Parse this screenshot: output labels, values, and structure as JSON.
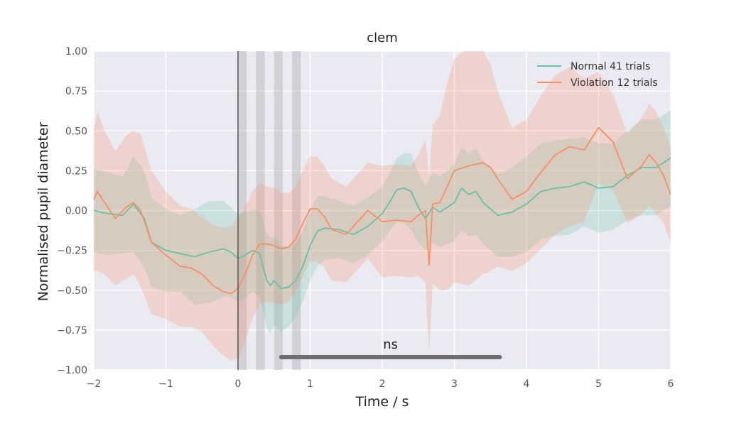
{
  "chart_data": {
    "type": "line",
    "title": "clem",
    "xlabel": "Time / s",
    "ylabel": "Normalised pupil diameter",
    "xlim": [
      -2,
      6
    ],
    "ylim": [
      -1.0,
      1.0
    ],
    "xticks": [
      -2,
      -1,
      0,
      1,
      2,
      3,
      4,
      5,
      6
    ],
    "xtick_labels": [
      "−2",
      "−1",
      "0",
      "1",
      "2",
      "3",
      "4",
      "5",
      "6"
    ],
    "yticks": [
      -1.0,
      -0.75,
      -0.5,
      -0.25,
      0.0,
      0.25,
      0.5,
      0.75,
      1.0
    ],
    "ytick_labels": [
      "−1.00",
      "−0.75",
      "−0.50",
      "−0.25",
      "0.00",
      "0.25",
      "0.50",
      "0.75",
      "1.00"
    ],
    "grid": true,
    "legend_position": "top-right",
    "series": [
      {
        "name": "Normal 41 trials",
        "color": "#66c2a5",
        "x": [
          -2.0,
          -1.8,
          -1.6,
          -1.45,
          -1.3,
          -1.2,
          -1.0,
          -0.8,
          -0.6,
          -0.4,
          -0.2,
          -0.1,
          0.0,
          0.1,
          0.2,
          0.3,
          0.4,
          0.45,
          0.5,
          0.6,
          0.7,
          0.8,
          0.9,
          1.0,
          1.1,
          1.2,
          1.4,
          1.6,
          1.8,
          2.0,
          2.1,
          2.2,
          2.3,
          2.4,
          2.5,
          2.6,
          2.7,
          2.8,
          3.0,
          3.1,
          3.2,
          3.3,
          3.4,
          3.6,
          3.8,
          4.0,
          4.2,
          4.4,
          4.6,
          4.8,
          5.0,
          5.2,
          5.4,
          5.6,
          5.8,
          6.0
        ],
        "y": [
          0.0,
          -0.02,
          -0.03,
          0.04,
          -0.05,
          -0.2,
          -0.25,
          -0.27,
          -0.29,
          -0.26,
          -0.24,
          -0.26,
          -0.3,
          -0.28,
          -0.25,
          -0.27,
          -0.44,
          -0.47,
          -0.44,
          -0.49,
          -0.48,
          -0.44,
          -0.35,
          -0.22,
          -0.13,
          -0.11,
          -0.12,
          -0.15,
          -0.1,
          -0.02,
          0.05,
          0.13,
          0.14,
          0.12,
          0.02,
          -0.05,
          0.02,
          -0.01,
          0.05,
          0.14,
          0.1,
          0.12,
          0.05,
          -0.03,
          -0.01,
          0.04,
          0.12,
          0.14,
          0.15,
          0.18,
          0.14,
          0.15,
          0.22,
          0.27,
          0.27,
          0.33
        ],
        "ci": [
          0.26,
          0.26,
          0.24,
          0.3,
          0.3,
          0.28,
          0.26,
          0.24,
          0.3,
          0.32,
          0.3,
          0.28,
          0.28,
          0.27,
          0.26,
          0.27,
          0.3,
          0.3,
          0.28,
          0.27,
          0.25,
          0.23,
          0.22,
          0.22,
          0.22,
          0.2,
          0.18,
          0.18,
          0.18,
          0.17,
          0.18,
          0.2,
          0.22,
          0.24,
          0.22,
          0.2,
          0.22,
          0.22,
          0.24,
          0.26,
          0.26,
          0.27,
          0.26,
          0.26,
          0.28,
          0.3,
          0.3,
          0.3,
          0.3,
          0.28,
          0.28,
          0.27,
          0.28,
          0.3,
          0.3,
          0.3
        ]
      },
      {
        "name": "Violation 12 trials",
        "color": "#fc8d62",
        "x": [
          -2.0,
          -1.95,
          -1.85,
          -1.7,
          -1.55,
          -1.45,
          -1.35,
          -1.2,
          -1.0,
          -0.8,
          -0.65,
          -0.5,
          -0.35,
          -0.2,
          -0.1,
          0.0,
          0.1,
          0.2,
          0.3,
          0.4,
          0.5,
          0.6,
          0.7,
          0.8,
          0.9,
          1.0,
          1.1,
          1.2,
          1.3,
          1.5,
          1.6,
          1.8,
          2.0,
          2.2,
          2.4,
          2.5,
          2.6,
          2.62,
          2.65,
          2.7,
          2.8,
          2.9,
          3.0,
          3.2,
          3.4,
          3.5,
          3.6,
          3.8,
          4.0,
          4.2,
          4.4,
          4.6,
          4.8,
          5.0,
          5.2,
          5.4,
          5.6,
          5.7,
          5.8,
          5.9,
          6.0
        ],
        "y": [
          0.07,
          0.12,
          0.05,
          -0.05,
          0.02,
          0.05,
          0.0,
          -0.2,
          -0.28,
          -0.35,
          -0.36,
          -0.4,
          -0.47,
          -0.51,
          -0.52,
          -0.49,
          -0.4,
          -0.28,
          -0.21,
          -0.21,
          -0.22,
          -0.24,
          -0.23,
          -0.18,
          -0.08,
          0.01,
          0.01,
          -0.04,
          -0.12,
          -0.15,
          -0.1,
          0.0,
          -0.07,
          -0.06,
          -0.07,
          -0.03,
          0.0,
          -0.15,
          -0.34,
          0.04,
          0.05,
          0.15,
          0.25,
          0.28,
          0.3,
          0.27,
          0.2,
          0.07,
          0.12,
          0.24,
          0.35,
          0.4,
          0.38,
          0.52,
          0.43,
          0.2,
          0.28,
          0.35,
          0.3,
          0.22,
          0.1
        ],
        "ci": [
          0.45,
          0.5,
          0.45,
          0.42,
          0.45,
          0.45,
          0.48,
          0.45,
          0.4,
          0.38,
          0.37,
          0.36,
          0.38,
          0.4,
          0.42,
          0.44,
          0.42,
          0.4,
          0.38,
          0.36,
          0.36,
          0.35,
          0.34,
          0.33,
          0.33,
          0.33,
          0.33,
          0.32,
          0.32,
          0.3,
          0.3,
          0.3,
          0.35,
          0.35,
          0.35,
          0.38,
          0.45,
          0.5,
          0.55,
          0.5,
          0.55,
          0.65,
          0.7,
          0.75,
          0.7,
          0.65,
          0.55,
          0.45,
          0.45,
          0.48,
          0.5,
          0.5,
          0.45,
          0.35,
          0.3,
          0.28,
          0.3,
          0.32,
          0.32,
          0.3,
          0.3
        ]
      }
    ],
    "shaded_bands": [
      {
        "x0": 0.0,
        "x1": 0.12
      },
      {
        "x0": 0.25,
        "x1": 0.37
      },
      {
        "x0": 0.5,
        "x1": 0.62
      },
      {
        "x0": 0.75,
        "x1": 0.87
      }
    ],
    "vline_x": 0.0,
    "significance_bar": {
      "x0": 0.6,
      "x1": 3.63,
      "y": -0.92,
      "label": "ns"
    }
  }
}
